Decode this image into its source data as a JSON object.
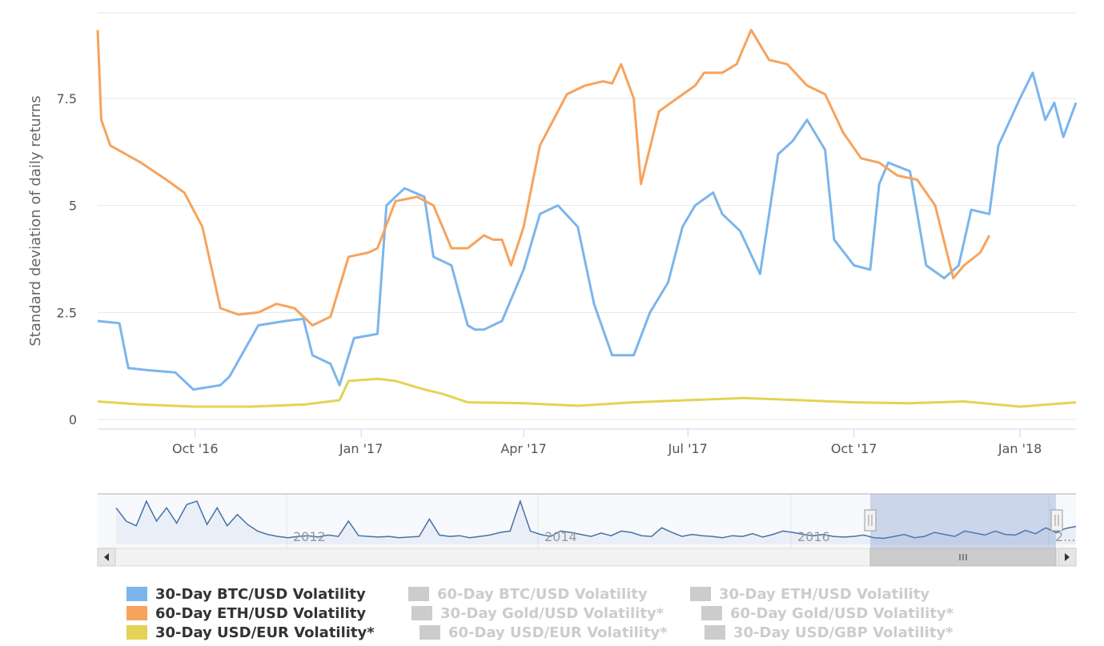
{
  "chart_data": {
    "type": "line",
    "ylabel": "Standard deviation of daily returns",
    "ylim": [
      0,
      9.5
    ],
    "yticks": [
      0,
      2.5,
      5,
      7.5
    ],
    "ytick_labels": [
      "0",
      "2.5",
      "5",
      "7.5"
    ],
    "xlim": [
      "2016-08-08",
      "2018-02-01"
    ],
    "xticks": [
      {
        "date": "2016-10-01",
        "label": "Oct '16"
      },
      {
        "date": "2017-01-01",
        "label": "Jan '17"
      },
      {
        "date": "2017-04-01",
        "label": "Apr '17"
      },
      {
        "date": "2017-07-01",
        "label": "Jul '17"
      },
      {
        "date": "2017-10-01",
        "label": "Oct '17"
      },
      {
        "date": "2018-01-01",
        "label": "Jan '18"
      }
    ],
    "series": [
      {
        "name": "30-Day BTC/USD Volatility",
        "color": "#7cb5ec",
        "visible": true,
        "x": [
          "2016-08-08",
          "2016-08-20",
          "2016-08-25",
          "2016-09-05",
          "2016-09-20",
          "2016-09-30",
          "2016-10-15",
          "2016-10-20",
          "2016-11-05",
          "2016-11-20",
          "2016-11-30",
          "2016-12-05",
          "2016-12-15",
          "2016-12-20",
          "2016-12-28",
          "2017-01-10",
          "2017-01-15",
          "2017-01-25",
          "2017-02-05",
          "2017-02-10",
          "2017-02-20",
          "2017-03-01",
          "2017-03-05",
          "2017-03-10",
          "2017-03-20",
          "2017-04-01",
          "2017-04-10",
          "2017-04-20",
          "2017-05-01",
          "2017-05-10",
          "2017-05-20",
          "2017-06-01",
          "2017-06-10",
          "2017-06-20",
          "2017-06-28",
          "2017-07-05",
          "2017-07-15",
          "2017-07-20",
          "2017-07-30",
          "2017-08-10",
          "2017-08-20",
          "2017-08-28",
          "2017-09-05",
          "2017-09-15",
          "2017-09-20",
          "2017-10-01",
          "2017-10-10",
          "2017-10-15",
          "2017-10-20",
          "2017-11-01",
          "2017-11-10",
          "2017-11-20",
          "2017-11-28",
          "2017-12-05",
          "2017-12-15",
          "2017-12-20",
          "2018-01-01",
          "2018-01-08",
          "2018-01-15",
          "2018-01-20",
          "2018-01-25",
          "2018-02-01"
        ],
        "y": [
          2.3,
          2.25,
          1.2,
          1.15,
          1.1,
          0.7,
          0.8,
          1.0,
          2.2,
          2.3,
          2.35,
          1.5,
          1.3,
          0.8,
          1.9,
          2.0,
          5.0,
          5.4,
          5.2,
          3.8,
          3.6,
          2.2,
          2.1,
          2.1,
          2.3,
          3.5,
          4.8,
          5.0,
          4.5,
          2.7,
          1.5,
          1.5,
          2.5,
          3.2,
          4.5,
          5.0,
          5.3,
          4.8,
          4.4,
          3.4,
          6.2,
          6.5,
          7.0,
          6.3,
          4.2,
          3.6,
          3.5,
          5.5,
          6.0,
          5.8,
          3.6,
          3.3,
          3.6,
          4.9,
          4.8,
          6.4,
          7.5,
          8.1,
          7.0,
          7.4,
          6.6,
          7.4
        ]
      },
      {
        "name": "60-Day ETH/USD Volatility",
        "color": "#f7a35c",
        "visible": true,
        "x": [
          "2016-08-08",
          "2016-08-10",
          "2016-08-15",
          "2016-09-01",
          "2016-09-15",
          "2016-09-25",
          "2016-10-05",
          "2016-10-15",
          "2016-10-25",
          "2016-11-05",
          "2016-11-15",
          "2016-11-25",
          "2016-12-05",
          "2016-12-15",
          "2016-12-25",
          "2017-01-05",
          "2017-01-10",
          "2017-01-20",
          "2017-02-01",
          "2017-02-10",
          "2017-02-20",
          "2017-03-01",
          "2017-03-10",
          "2017-03-15",
          "2017-03-20",
          "2017-03-25",
          "2017-04-01",
          "2017-04-10",
          "2017-04-25",
          "2017-05-05",
          "2017-05-15",
          "2017-05-20",
          "2017-05-25",
          "2017-06-01",
          "2017-06-05",
          "2017-06-15",
          "2017-06-25",
          "2017-07-05",
          "2017-07-10",
          "2017-07-20",
          "2017-07-28",
          "2017-08-05",
          "2017-08-15",
          "2017-08-25",
          "2017-09-05",
          "2017-09-15",
          "2017-09-25",
          "2017-10-05",
          "2017-10-15",
          "2017-10-25",
          "2017-11-05",
          "2017-11-15",
          "2017-11-25",
          "2017-12-01",
          "2017-12-10",
          "2017-12-15"
        ],
        "y": [
          9.1,
          7.0,
          6.4,
          6.0,
          5.6,
          5.3,
          4.5,
          2.6,
          2.45,
          2.5,
          2.7,
          2.6,
          2.2,
          2.4,
          3.8,
          3.9,
          4.0,
          5.1,
          5.2,
          5.0,
          4.0,
          4.0,
          4.3,
          4.2,
          4.2,
          3.6,
          4.5,
          6.4,
          7.6,
          7.8,
          7.9,
          7.85,
          8.3,
          7.5,
          5.5,
          7.2,
          7.5,
          7.8,
          8.1,
          8.1,
          8.3,
          9.1,
          8.4,
          8.3,
          7.8,
          7.6,
          6.7,
          6.1,
          6.0,
          5.7,
          5.6,
          5.0,
          3.3,
          3.6,
          3.9,
          4.3
        ]
      },
      {
        "name": "30-Day USD/EUR Volatility*",
        "color": "#e4d354",
        "visible": true,
        "x": [
          "2016-08-08",
          "2016-09-01",
          "2016-10-01",
          "2016-11-01",
          "2016-12-01",
          "2016-12-20",
          "2016-12-25",
          "2017-01-10",
          "2017-01-20",
          "2017-02-05",
          "2017-02-15",
          "2017-03-01",
          "2017-04-01",
          "2017-05-01",
          "2017-06-01",
          "2017-07-01",
          "2017-08-01",
          "2017-09-01",
          "2017-10-01",
          "2017-11-01",
          "2017-12-01",
          "2018-01-01",
          "2018-02-01"
        ],
        "y": [
          0.42,
          0.35,
          0.3,
          0.3,
          0.35,
          0.45,
          0.9,
          0.95,
          0.9,
          0.7,
          0.6,
          0.4,
          0.38,
          0.32,
          0.4,
          0.45,
          0.5,
          0.45,
          0.4,
          0.38,
          0.42,
          0.3,
          0.4
        ]
      },
      {
        "name": "60-Day BTC/USD Volatility",
        "visible": false
      },
      {
        "name": "30-Day ETH/USD Volatility",
        "visible": false
      },
      {
        "name": "30-Day Gold/USD Volatility*",
        "visible": false
      },
      {
        "name": "60-Day Gold/USD Volatility*",
        "visible": false
      },
      {
        "name": "60-Day USD/EUR Volatility*",
        "visible": false
      },
      {
        "name": "30-Day USD/GBP Volatility*",
        "visible": false
      }
    ],
    "navigator": {
      "labels": [
        "2012",
        "2014",
        "2016",
        "2..."
      ],
      "values": [
        5.5,
        3.5,
        2.8,
        6.5,
        3.5,
        5.5,
        3.2,
        6.0,
        6.5,
        3.0,
        5.5,
        2.8,
        4.5,
        3.0,
        2.0,
        1.5,
        1.2,
        1.0,
        1.2,
        1.3,
        1.1,
        1.4,
        1.2,
        3.5,
        1.3,
        1.2,
        1.1,
        1.2,
        1.0,
        1.1,
        1.2,
        3.8,
        1.4,
        1.2,
        1.3,
        1.0,
        1.2,
        1.4,
        1.8,
        2.0,
        6.5,
        2.0,
        1.5,
        1.2,
        2.0,
        1.8,
        1.5,
        1.2,
        1.7,
        1.3,
        2.0,
        1.8,
        1.3,
        1.2,
        2.5,
        1.8,
        1.2,
        1.5,
        1.3,
        1.2,
        1.0,
        1.3,
        1.2,
        1.6,
        1.1,
        1.5,
        2.0,
        1.8,
        1.5,
        1.3,
        1.5,
        1.2,
        1.1,
        1.2,
        1.4,
        1.0,
        0.9,
        1.2,
        1.5,
        1.0,
        1.2,
        1.8,
        1.5,
        1.2,
        2.0,
        1.7,
        1.4,
        2.0,
        1.5,
        1.4,
        2.1,
        1.6,
        2.5,
        1.8,
        2.4,
        2.7
      ],
      "selected_range": [
        "2016-08-08",
        "2018-02-01"
      ]
    }
  }
}
